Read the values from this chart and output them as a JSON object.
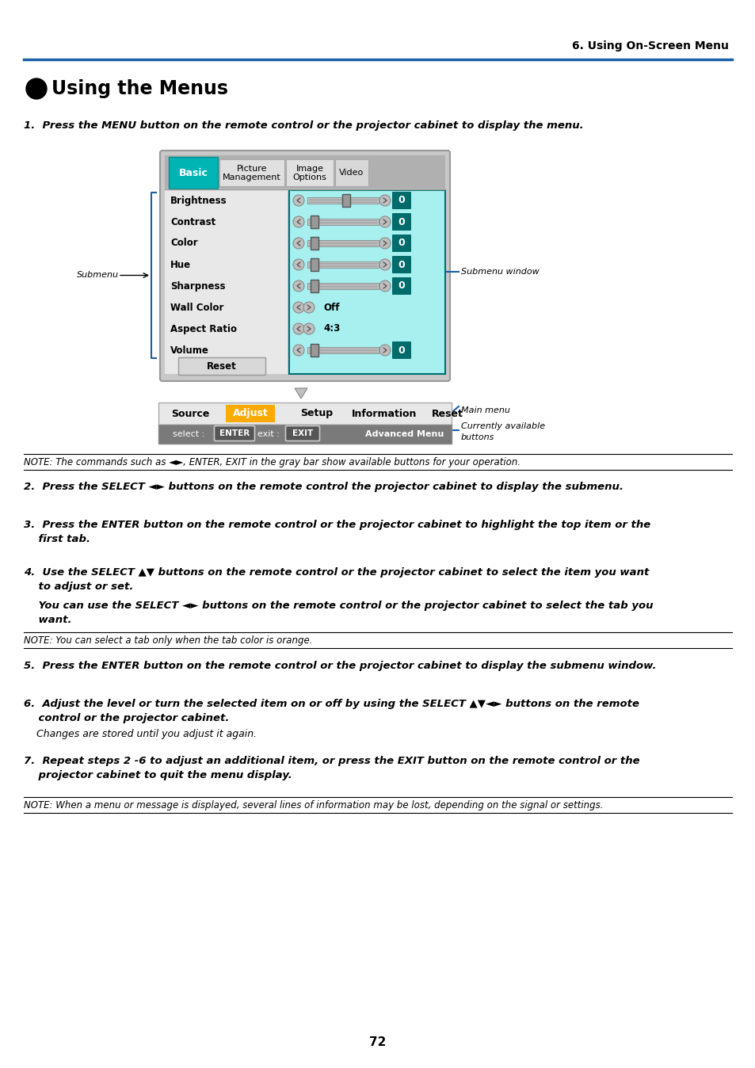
{
  "header_text": "6. Using On-Screen Menu",
  "title_number": "❶",
  "title_text": "Using the Menus",
  "step1": "1.  Press the MENU button on the remote control or the projector cabinet to display the menu.",
  "note1": "NOTE: The commands such as ◄►, ENTER, EXIT in the gray bar show available buttons for your operation.",
  "step2": "2.  Press the SELECT ◄► buttons on the remote control the projector cabinet to display the submenu.",
  "step3_line1": "3.  Press the ENTER button on the remote control or the projector cabinet to highlight the top item or the",
  "step3_line2": "    first tab.",
  "step4_line1": "4.  Use the SELECT ▲▼ buttons on the remote control or the projector cabinet to select the item you want",
  "step4_line2": "    to adjust or set.",
  "step4_line3": "    You can use the SELECT ◄► buttons on the remote control or the projector cabinet to select the tab you",
  "step4_line4": "    want.",
  "note2": "NOTE: You can select a tab only when the tab color is orange.",
  "step5": "5.  Press the ENTER button on the remote control or the projector cabinet to display the submenu window.",
  "step6_line1": "6.  Adjust the level or turn the selected item on or off by using the SELECT ▲▼◄► buttons on the remote",
  "step6_line2": "    control or the projector cabinet.",
  "step6_line3": "    Changes are stored until you adjust it again.",
  "step7_line1": "7.  Repeat steps 2 -6 to adjust an additional item, or press the EXIT button on the remote control or the",
  "step7_line2": "    projector cabinet to quit the menu display.",
  "note3": "NOTE: When a menu or message is displayed, several lines of information may be lost, depending on the signal or settings.",
  "page_number": "72",
  "header_line_color": "#1a5fa8",
  "bg_color": "#ffffff",
  "menu_items": [
    "Brightness",
    "Contrast",
    "Color",
    "Hue",
    "Sharpness",
    "Wall Color",
    "Aspect Ratio",
    "Volume"
  ],
  "text_values": {
    "5": "Off",
    "6": "4:3"
  },
  "bar_items": [
    "Source",
    "Adjust",
    "Setup",
    "Information",
    "Reset"
  ]
}
